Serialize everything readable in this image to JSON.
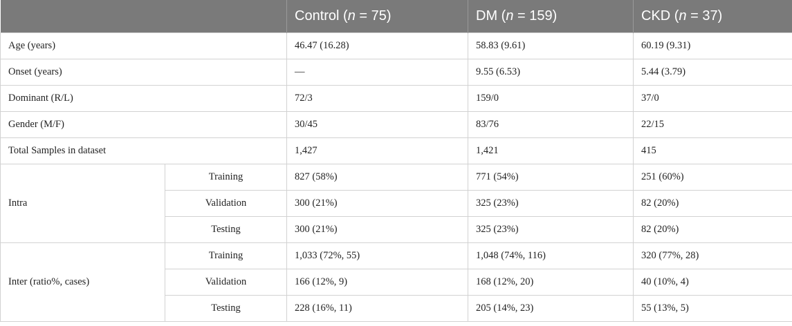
{
  "header": {
    "col0": "",
    "control": {
      "name": "Control",
      "n_label": "n",
      "n_value": "= 75)"
    },
    "dm": {
      "name": "DM",
      "n_label": "n",
      "n_value": "= 159)"
    },
    "ckd": {
      "name": "CKD",
      "n_label": "n",
      "n_value": "= 37)"
    }
  },
  "rows": {
    "age": {
      "label": "Age (years)",
      "control": "46.47 (16.28)",
      "dm": "58.83 (9.61)",
      "ckd": "60.19 (9.31)"
    },
    "onset": {
      "label": "Onset (years)",
      "control": "—",
      "dm": "9.55 (6.53)",
      "ckd": "5.44 (3.79)"
    },
    "dominant": {
      "label": "Dominant (R/L)",
      "control": "72/3",
      "dm": "159/0",
      "ckd": "37/0"
    },
    "gender": {
      "label": "Gender (M/F)",
      "control": "30/45",
      "dm": "83/76",
      "ckd": "22/15"
    },
    "total": {
      "label": "Total Samples in dataset",
      "control": "1,427",
      "dm": "1,421",
      "ckd": "415"
    }
  },
  "intra": {
    "label": "Intra",
    "training": {
      "label": "Training",
      "control": "827 (58%)",
      "dm": "771 (54%)",
      "ckd": "251 (60%)"
    },
    "validation": {
      "label": "Validation",
      "control": "300 (21%)",
      "dm": "325 (23%)",
      "ckd": "82 (20%)"
    },
    "testing": {
      "label": "Testing",
      "control": "300 (21%)",
      "dm": "325 (23%)",
      "ckd": "82 (20%)"
    }
  },
  "inter": {
    "label": "Inter (ratio%, cases)",
    "training": {
      "label": "Training",
      "control": "1,033 (72%, 55)",
      "dm": "1,048 (74%, 116)",
      "ckd": "320 (77%, 28)"
    },
    "validation": {
      "label": "Validation",
      "control": "166 (12%, 9)",
      "dm": "168 (12%, 20)",
      "ckd": "40 (10%, 4)"
    },
    "testing": {
      "label": "Testing",
      "control": "228 (16%, 11)",
      "dm": "205 (14%, 23)",
      "ckd": "55 (13%, 5)"
    }
  }
}
